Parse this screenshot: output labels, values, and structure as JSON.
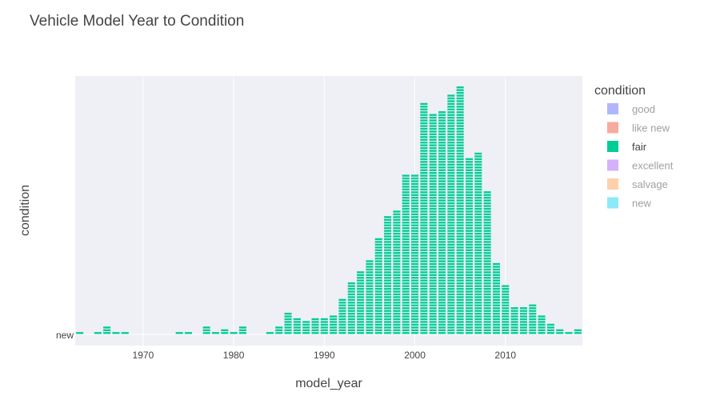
{
  "chart_data": {
    "type": "bar",
    "title": "Vehicle Model Year to Condition",
    "xlabel": "model_year",
    "ylabel": "condition",
    "xlim": [
      1962.5,
      2018.5
    ],
    "x_ticks": [
      "1970",
      "1980",
      "1990",
      "2000",
      "2010"
    ],
    "y_tick_label": "new",
    "grid": true,
    "legend": {
      "title": "condition",
      "placement": "right",
      "items": [
        {
          "label": "good",
          "color": "#636efa",
          "active": false
        },
        {
          "label": "like new",
          "color": "#ef553b",
          "active": false
        },
        {
          "label": "fair",
          "color": "#00cc96",
          "active": true
        },
        {
          "label": "excellent",
          "color": "#ab63fa",
          "active": false
        },
        {
          "label": "salvage",
          "color": "#ffa15a",
          "active": false
        },
        {
          "label": "new",
          "color": "#19d3f3",
          "active": false
        }
      ]
    },
    "series": [
      {
        "name": "fair",
        "color": "#00cc96",
        "x": [
          1963,
          1964,
          1965,
          1966,
          1967,
          1968,
          1969,
          1970,
          1971,
          1972,
          1973,
          1974,
          1975,
          1976,
          1977,
          1978,
          1979,
          1980,
          1981,
          1982,
          1983,
          1984,
          1985,
          1986,
          1987,
          1988,
          1989,
          1990,
          1991,
          1992,
          1993,
          1994,
          1995,
          1996,
          1997,
          1998,
          1999,
          2000,
          2001,
          2002,
          2003,
          2004,
          2005,
          2006,
          2007,
          2008,
          2009,
          2010,
          2011,
          2012,
          2013,
          2014,
          2015,
          2016,
          2017,
          2018
        ],
        "values": [
          1,
          0,
          1,
          3,
          1,
          1,
          0,
          0,
          0,
          0,
          0,
          1,
          1,
          0,
          3,
          1,
          2,
          1,
          3,
          0,
          0,
          1,
          3,
          8,
          6,
          5,
          6,
          6,
          7,
          13,
          19,
          23,
          27,
          35,
          43,
          45,
          58,
          58,
          84,
          80,
          81,
          87,
          90,
          64,
          66,
          52,
          26,
          18,
          10,
          10,
          11,
          7,
          4,
          2,
          1,
          2
        ]
      }
    ]
  }
}
